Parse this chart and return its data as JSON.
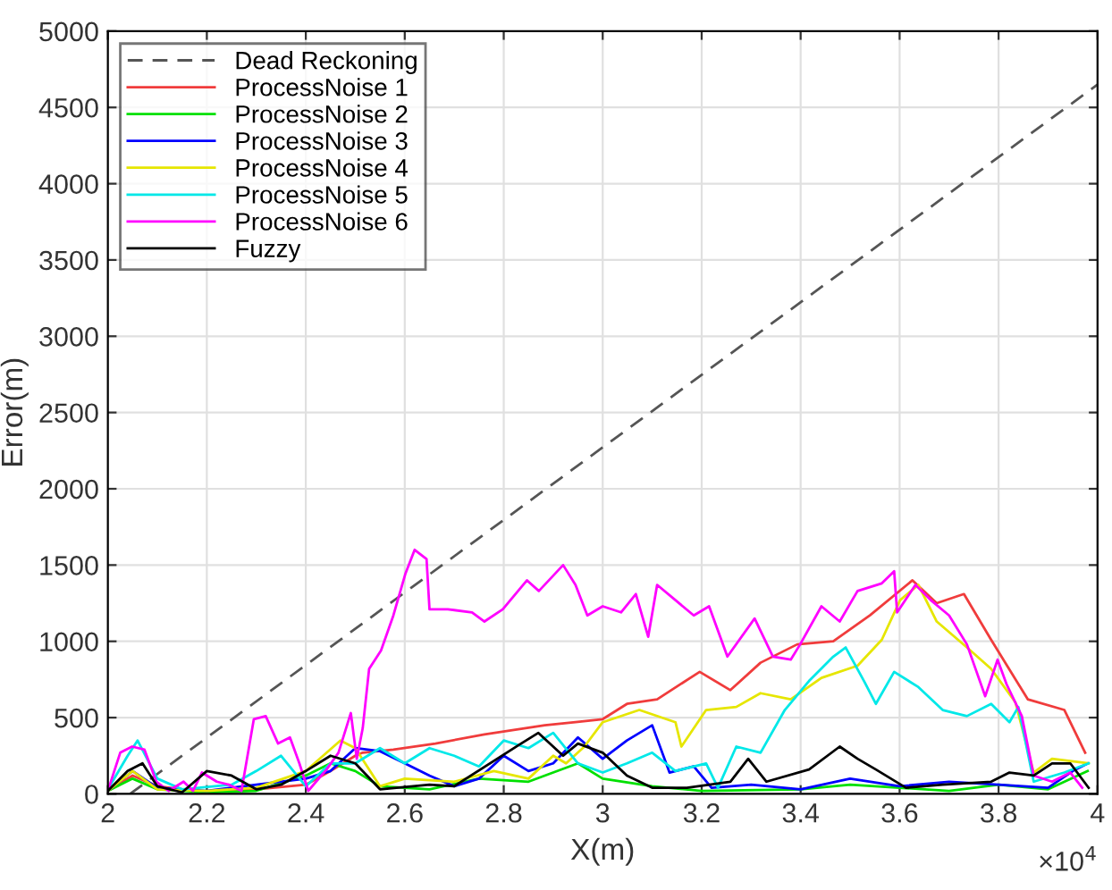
{
  "chart_data": {
    "type": "line",
    "xlabel": "X(m)",
    "ylabel": "Error(m)",
    "xlim": [
      2,
      4
    ],
    "ylim": [
      0,
      5000
    ],
    "xticks": [
      2,
      2.2,
      2.4,
      2.6,
      2.8,
      3,
      3.2,
      3.4,
      3.6,
      3.8,
      4
    ],
    "yticks": [
      0,
      500,
      1000,
      1500,
      2000,
      2500,
      3000,
      3500,
      4000,
      4500,
      5000
    ],
    "grid": true,
    "legend": "top left",
    "marker": "none",
    "annotations": [
      "×10$^{4}$"
    ],
    "series": [
      {
        "name": "Dead Reckoning",
        "color": "#555555",
        "line_style": "dashed",
        "x": [
          2.045,
          4.0
        ],
        "values": [
          0,
          4650
        ]
      },
      {
        "name": "ProcessNoise 1",
        "color": "#f03c3c",
        "x": [
          2.0,
          2.05,
          2.1,
          2.2,
          2.3,
          2.4,
          2.45,
          2.5,
          2.515,
          2.577,
          2.662,
          2.761,
          2.883,
          2.945,
          3.0,
          3.049,
          3.11,
          3.196,
          3.258,
          3.319,
          3.393,
          3.466,
          3.54,
          3.626,
          3.675,
          3.73,
          3.785,
          3.859,
          3.933,
          3.975
        ],
        "values": [
          20,
          120,
          50,
          10,
          30,
          60,
          150,
          250,
          270,
          290,
          330,
          390,
          450,
          470,
          490,
          590,
          620,
          800,
          680,
          860,
          980,
          1000,
          1170,
          1400,
          1250,
          1310,
          1010,
          620,
          550,
          270
        ]
      },
      {
        "name": "ProcessNoise 2",
        "color": "#00e000",
        "x": [
          2.0,
          2.05,
          2.1,
          2.2,
          2.3,
          2.4,
          2.45,
          2.5,
          2.55,
          2.65,
          2.75,
          2.85,
          2.95,
          3.0,
          3.1,
          3.2,
          3.4,
          3.5,
          3.6,
          3.7,
          3.8,
          3.9,
          3.98
        ],
        "values": [
          20,
          100,
          30,
          10,
          20,
          120,
          200,
          150,
          50,
          30,
          100,
          80,
          200,
          100,
          50,
          20,
          30,
          60,
          40,
          20,
          60,
          30,
          150
        ]
      },
      {
        "name": "ProcessNoise 3",
        "color": "#0000ff",
        "x": [
          2.0,
          2.05,
          2.1,
          2.2,
          2.3,
          2.4,
          2.45,
          2.5,
          2.55,
          2.6,
          2.65,
          2.7,
          2.75,
          2.8,
          2.85,
          2.9,
          2.95,
          3.0,
          3.049,
          3.1,
          3.135,
          3.184,
          3.22,
          3.3,
          3.4,
          3.5,
          3.6,
          3.7,
          3.8,
          3.9,
          3.95,
          3.98
        ],
        "values": [
          20,
          150,
          40,
          20,
          60,
          100,
          150,
          300,
          280,
          200,
          120,
          50,
          100,
          250,
          150,
          200,
          370,
          230,
          350,
          450,
          140,
          180,
          40,
          60,
          30,
          100,
          50,
          80,
          60,
          40,
          150,
          200
        ]
      },
      {
        "name": "ProcessNoise 4",
        "color": "#e6e600",
        "x": [
          2.0,
          2.05,
          2.1,
          2.2,
          2.3,
          2.4,
          2.47,
          2.5,
          2.55,
          2.6,
          2.7,
          2.78,
          2.85,
          2.9,
          2.926,
          2.963,
          3.0,
          3.074,
          3.147,
          3.159,
          3.209,
          3.27,
          3.319,
          3.38,
          3.442,
          3.515,
          3.564,
          3.601,
          3.638,
          3.675,
          3.736,
          3.785,
          3.834,
          3.871,
          3.908,
          3.982
        ],
        "values": [
          20,
          150,
          30,
          20,
          40,
          150,
          350,
          300,
          50,
          100,
          80,
          150,
          100,
          250,
          200,
          310,
          470,
          550,
          470,
          310,
          550,
          570,
          660,
          620,
          760,
          840,
          1010,
          1270,
          1370,
          1130,
          960,
          820,
          600,
          140,
          230,
          200
        ]
      },
      {
        "name": "ProcessNoise 5",
        "color": "#00e8e8",
        "x": [
          2.0,
          2.04,
          2.06,
          2.1,
          2.15,
          2.25,
          2.3,
          2.35,
          2.4,
          2.45,
          2.5,
          2.55,
          2.6,
          2.65,
          2.7,
          2.75,
          2.8,
          2.85,
          2.9,
          2.95,
          3.0,
          3.049,
          3.1,
          3.147,
          3.209,
          3.233,
          3.27,
          3.319,
          3.368,
          3.417,
          3.466,
          3.491,
          3.528,
          3.552,
          3.589,
          3.638,
          3.687,
          3.736,
          3.785,
          3.822,
          3.84,
          3.871,
          3.933,
          3.982
        ],
        "values": [
          30,
          250,
          350,
          100,
          30,
          60,
          150,
          250,
          50,
          200,
          200,
          300,
          200,
          300,
          250,
          180,
          350,
          300,
          400,
          200,
          140,
          200,
          270,
          150,
          200,
          40,
          310,
          270,
          550,
          740,
          900,
          960,
          740,
          590,
          800,
          700,
          550,
          510,
          590,
          470,
          570,
          80,
          140,
          200
        ]
      },
      {
        "name": "ProcessNoise 6",
        "color": "#ff00ff",
        "x": [
          2.0,
          2.025,
          2.049,
          2.074,
          2.098,
          2.123,
          2.153,
          2.172,
          2.19,
          2.22,
          2.245,
          2.27,
          2.295,
          2.319,
          2.344,
          2.368,
          2.387,
          2.405,
          2.442,
          2.466,
          2.491,
          2.503,
          2.515,
          2.528,
          2.552,
          2.577,
          2.601,
          2.62,
          2.644,
          2.65,
          2.687,
          2.736,
          2.761,
          2.798,
          2.847,
          2.871,
          2.92,
          2.945,
          2.969,
          3.0,
          3.037,
          3.067,
          3.092,
          3.11,
          3.147,
          3.184,
          3.215,
          3.252,
          3.307,
          3.344,
          3.38,
          3.399,
          3.442,
          3.479,
          3.515,
          3.564,
          3.589,
          3.595,
          3.632,
          3.663,
          3.7,
          3.736,
          3.773,
          3.798,
          3.816,
          3.847,
          3.871,
          3.908,
          3.945,
          3.969
        ],
        "values": [
          20,
          270,
          310,
          290,
          80,
          20,
          80,
          20,
          140,
          80,
          60,
          20,
          490,
          510,
          330,
          370,
          200,
          20,
          160,
          270,
          530,
          230,
          430,
          820,
          940,
          1170,
          1440,
          1600,
          1540,
          1210,
          1210,
          1190,
          1130,
          1210,
          1400,
          1330,
          1500,
          1370,
          1170,
          1230,
          1190,
          1310,
          1030,
          1370,
          1270,
          1170,
          1230,
          900,
          1150,
          900,
          880,
          980,
          1230,
          1130,
          1330,
          1380,
          1460,
          1190,
          1370,
          1270,
          1170,
          980,
          640,
          880,
          720,
          510,
          120,
          80,
          140,
          40
        ]
      },
      {
        "name": "Fuzzy",
        "color": "#000000",
        "x": [
          2.0,
          2.04,
          2.07,
          2.1,
          2.15,
          2.2,
          2.25,
          2.3,
          2.35,
          2.4,
          2.45,
          2.5,
          2.55,
          2.65,
          2.7,
          2.83,
          2.87,
          2.92,
          2.95,
          3.0,
          3.049,
          3.1,
          3.17,
          3.258,
          3.294,
          3.331,
          3.417,
          3.479,
          3.515,
          3.552,
          3.613,
          3.687,
          3.785,
          3.822,
          3.871,
          3.908,
          3.945,
          3.982
        ],
        "values": [
          20,
          150,
          200,
          50,
          10,
          150,
          120,
          30,
          60,
          150,
          250,
          200,
          30,
          60,
          50,
          320,
          400,
          250,
          330,
          270,
          120,
          40,
          40,
          80,
          230,
          80,
          160,
          310,
          230,
          160,
          40,
          60,
          80,
          140,
          120,
          200,
          200,
          40
        ]
      }
    ]
  }
}
